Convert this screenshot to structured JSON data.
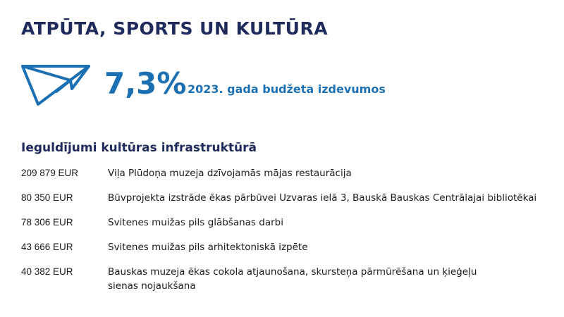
{
  "title": "ATPŪTA, SPORTS UN KULTŪRA",
  "icon": "paper-plane-icon",
  "accent_color": "#1b6fb3",
  "heading_color": "#1f2a5c",
  "stat": {
    "value": "7,3%",
    "label": "2023. gada budžeta izdevumos"
  },
  "section_heading": "Ieguldījumi kultūras infrastruktūrā",
  "items": [
    {
      "amount": "209 879 EUR",
      "lines": [
        "Viļa Plūdoņa muzeja dzīvojamās mājas restaurācija"
      ]
    },
    {
      "amount": "80 350 EUR",
      "lines": [
        "Būvprojekta izstrāde ēkas pārbūvei Uzvaras ielā 3, Bauskā Bauskas Centrālajai bibliotēkai"
      ]
    },
    {
      "amount": "78 306 EUR",
      "lines": [
        "Svitenes muižas pils glābšanas darbi"
      ]
    },
    {
      "amount": "43 666 EUR",
      "lines": [
        "Svitenes muižas pils arhitektoniskā izpēte"
      ]
    },
    {
      "amount": "40 382 EUR",
      "lines": [
        "Bauskas muzeja ēkas cokola atjaunošana, skursteņa pārmūrēšana un ķieģeļu",
        "sienas nojaukšana"
      ]
    }
  ]
}
